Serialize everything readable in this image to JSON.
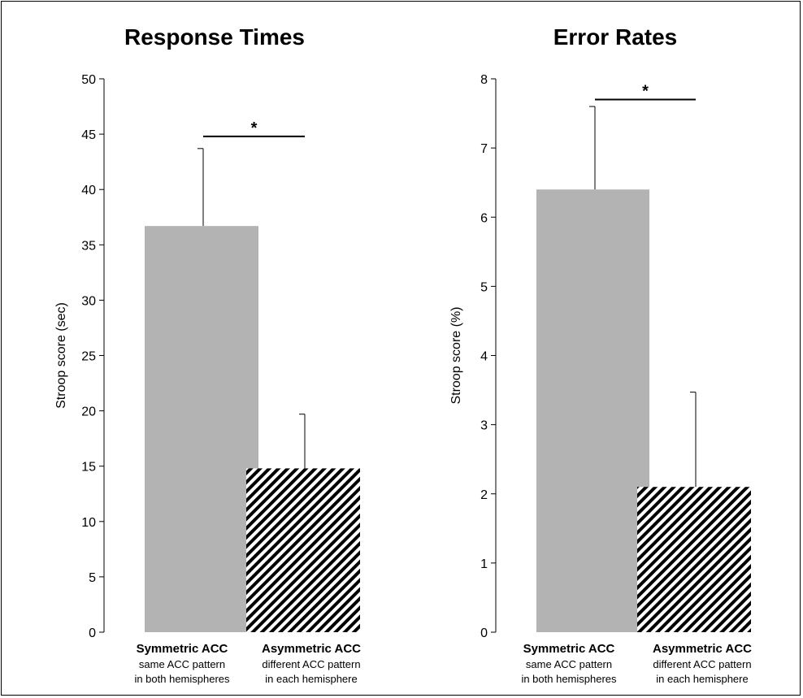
{
  "chart_data": [
    {
      "type": "bar",
      "title": "Response Times",
      "ylabel": "Stroop score (sec)",
      "ylim": [
        0,
        50
      ],
      "yticks": [
        0,
        5,
        10,
        15,
        20,
        25,
        30,
        35,
        40,
        45,
        50
      ],
      "categories": [
        {
          "label": "Symmetric ACC",
          "sub1": "same ACC pattern",
          "sub2": "in both hemispheres"
        },
        {
          "label": "Asymmetric ACC",
          "sub1": "different ACC pattern",
          "sub2": "in each hemisphere"
        }
      ],
      "values": [
        36.7,
        14.8
      ],
      "errors": [
        7.0,
        4.9
      ],
      "bar_styles": [
        "solid-gray",
        "hatched"
      ],
      "significance": {
        "between": [
          0,
          1
        ],
        "y": 44.8,
        "label": "*"
      }
    },
    {
      "type": "bar",
      "title": "Error Rates",
      "ylabel": "Stroop score (%)",
      "ylim": [
        0,
        8
      ],
      "yticks": [
        0,
        1,
        2,
        3,
        4,
        5,
        6,
        7,
        8
      ],
      "categories": [
        {
          "label": "Symmetric ACC",
          "sub1": "same ACC pattern",
          "sub2": "in both hemispheres"
        },
        {
          "label": "Asymmetric ACC",
          "sub1": "different ACC pattern",
          "sub2": "in each hemisphere"
        }
      ],
      "values": [
        6.4,
        2.1
      ],
      "errors": [
        1.2,
        1.37
      ],
      "bar_styles": [
        "solid-gray",
        "hatched"
      ],
      "significance": {
        "between": [
          0,
          1
        ],
        "y": 7.7,
        "label": "*"
      }
    }
  ],
  "colors": {
    "bar_gray": "#b3b3b3",
    "hatch": "#000000",
    "axis": "#000000"
  }
}
